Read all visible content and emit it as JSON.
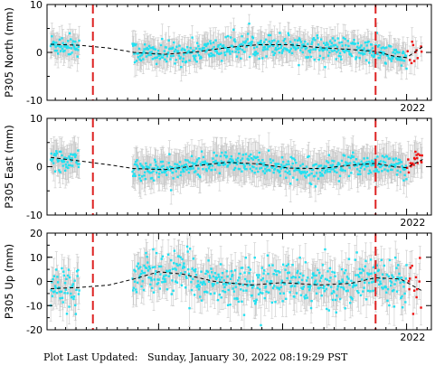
{
  "footer": {
    "label": "Plot Last Updated:",
    "value": "Sunday, January 30, 2022 08:19:29 PST"
  },
  "colors": {
    "points": "#22e0f0",
    "recent_points": "#ee1111",
    "error_bars": "#c8c8c8",
    "trend_line": "#000000",
    "event_lines": "#dd2222"
  },
  "chart_data": [
    {
      "type": "scatter",
      "ylabel": "P305 North (mm)",
      "ylim": [
        -10,
        10
      ],
      "yticks": [
        -10,
        0,
        10
      ],
      "xlabel": "2022",
      "xlim": [
        2019.1,
        2022.2
      ],
      "event_lines_x": [
        2019.47,
        2021.75
      ],
      "segments": [
        [
          2019.13,
          2019.36
        ],
        [
          2019.79,
          2022.13
        ]
      ],
      "trend": [
        {
          "x": 2019.13,
          "y": 1.7
        },
        {
          "x": 2019.36,
          "y": 1.5
        },
        {
          "x": 2019.6,
          "y": 0.9
        },
        {
          "x": 2019.8,
          "y": 0.0
        },
        {
          "x": 2020.05,
          "y": -0.4
        },
        {
          "x": 2020.3,
          "y": 0.1
        },
        {
          "x": 2020.55,
          "y": 1.0
        },
        {
          "x": 2020.8,
          "y": 1.6
        },
        {
          "x": 2021.05,
          "y": 1.6
        },
        {
          "x": 2021.3,
          "y": 1.0
        },
        {
          "x": 2021.55,
          "y": 0.6
        },
        {
          "x": 2021.75,
          "y": 0.2
        },
        {
          "x": 2021.9,
          "y": -0.8
        },
        {
          "x": 2022.0,
          "y": -1.1
        },
        {
          "x": 2022.13,
          "y": 1.2
        }
      ],
      "scatter_sd": 1.2,
      "error_bar": 2.6,
      "recent_from": 2022.0
    },
    {
      "type": "scatter",
      "ylabel": "P305 East (mm)",
      "ylim": [
        -10,
        10
      ],
      "yticks": [
        -10,
        0,
        10
      ],
      "xlabel": "2022",
      "xlim": [
        2019.1,
        2022.2
      ],
      "event_lines_x": [
        2019.47,
        2021.75
      ],
      "segments": [
        [
          2019.13,
          2019.36
        ],
        [
          2019.79,
          2022.13
        ]
      ],
      "trend": [
        {
          "x": 2019.13,
          "y": 1.9
        },
        {
          "x": 2019.36,
          "y": 1.2
        },
        {
          "x": 2019.6,
          "y": 0.4
        },
        {
          "x": 2019.8,
          "y": -0.4
        },
        {
          "x": 2020.05,
          "y": -0.6
        },
        {
          "x": 2020.3,
          "y": 0.2
        },
        {
          "x": 2020.55,
          "y": 0.9
        },
        {
          "x": 2020.8,
          "y": 0.6
        },
        {
          "x": 2021.05,
          "y": -0.3
        },
        {
          "x": 2021.3,
          "y": -0.4
        },
        {
          "x": 2021.55,
          "y": 0.3
        },
        {
          "x": 2021.75,
          "y": 0.7
        },
        {
          "x": 2021.9,
          "y": 0.0
        },
        {
          "x": 2022.0,
          "y": -0.2
        },
        {
          "x": 2022.13,
          "y": 1.5
        }
      ],
      "scatter_sd": 1.1,
      "error_bar": 3.2,
      "recent_from": 2022.0
    },
    {
      "type": "scatter",
      "ylabel": "P305 Up (mm)",
      "ylim": [
        -20,
        20
      ],
      "yticks": [
        -20,
        -10,
        0,
        10,
        20
      ],
      "xlabel": "2022",
      "xlim": [
        2019.1,
        2022.2
      ],
      "event_lines_x": [
        2019.47,
        2021.75
      ],
      "segments": [
        [
          2019.13,
          2019.36
        ],
        [
          2019.79,
          2022.13
        ]
      ],
      "trend": [
        {
          "x": 2019.13,
          "y": -3.0
        },
        {
          "x": 2019.36,
          "y": -2.5
        },
        {
          "x": 2019.6,
          "y": -1.5
        },
        {
          "x": 2019.8,
          "y": 1.0
        },
        {
          "x": 2020.0,
          "y": 4.0
        },
        {
          "x": 2020.2,
          "y": 3.0
        },
        {
          "x": 2020.45,
          "y": 0.0
        },
        {
          "x": 2020.75,
          "y": -1.5
        },
        {
          "x": 2021.0,
          "y": -0.5
        },
        {
          "x": 2021.3,
          "y": -1.5
        },
        {
          "x": 2021.55,
          "y": -0.8
        },
        {
          "x": 2021.75,
          "y": 1.5
        },
        {
          "x": 2021.95,
          "y": 1.0
        },
        {
          "x": 2022.13,
          "y": -4.0
        }
      ],
      "scatter_sd": 4.5,
      "error_bar": 6.5,
      "recent_from": 2022.0
    }
  ]
}
